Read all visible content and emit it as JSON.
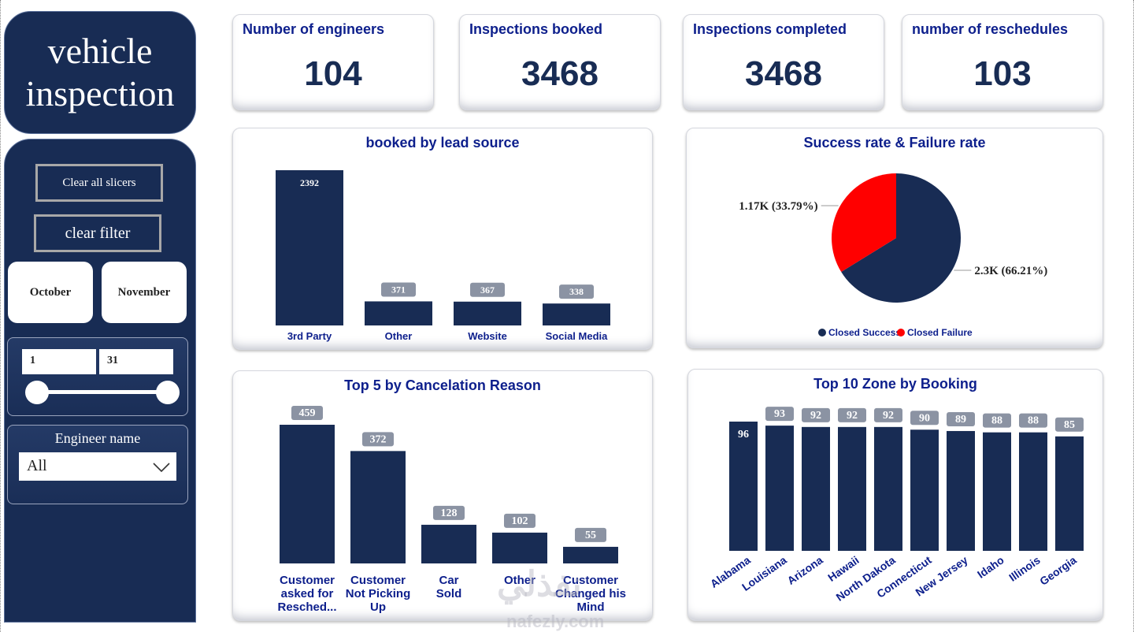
{
  "sidebar": {
    "title_line1": "vehicle",
    "title_line2": "inspection",
    "clear_slicers": "Clear all slicers",
    "clear_filter": "clear filter",
    "months": [
      "October",
      "November"
    ],
    "day_range": {
      "from": "1",
      "to": "31"
    },
    "engineer_label": "Engineer name",
    "engineer_value": "All"
  },
  "kpis": [
    {
      "label": "Number of engineers",
      "value": "104"
    },
    {
      "label": "Inspections booked",
      "value": "3468"
    },
    {
      "label": "Inspections completed",
      "value": "3468"
    },
    {
      "label": "number of reschedules",
      "value": "103"
    }
  ],
  "chart_data": [
    {
      "type": "bar",
      "title": "booked by lead source",
      "categories": [
        "3rd Party",
        "Other",
        "Website",
        "Social Media"
      ],
      "values": [
        2392,
        371,
        367,
        338
      ],
      "ylim": [
        0,
        2392
      ],
      "color": "#182c54"
    },
    {
      "type": "pie",
      "title": "Success rate & Failure rate",
      "labels": [
        "Closed Success",
        "Closed Failure"
      ],
      "values": [
        66.21,
        33.79
      ],
      "data_labels": [
        "2.3K (66.21%)",
        "1.17K (33.79%)"
      ],
      "colors": [
        "#182c54",
        "#ff0000"
      ],
      "legend": "bottom"
    },
    {
      "type": "bar",
      "title": "Top 5 by Cancelation Reason",
      "categories": [
        "Customer asked for Resched...",
        "Customer Not Picking Up",
        "Car Sold",
        "Other",
        "Customer Changed his Mind"
      ],
      "values": [
        459,
        372,
        128,
        102,
        55
      ],
      "ylim": [
        0,
        459
      ],
      "color": "#182c54"
    },
    {
      "type": "bar",
      "title": "Top 10 Zone by Booking",
      "categories": [
        "Alabama",
        "Louisiana",
        "Arizona",
        "Hawaii",
        "North Dakota",
        "Connecticut",
        "New Jersey",
        "Idaho",
        "Illinois",
        "Georgia"
      ],
      "values": [
        96,
        93,
        92,
        92,
        92,
        90,
        89,
        88,
        88,
        85
      ],
      "ylim": [
        0,
        96
      ],
      "color": "#182c54"
    }
  ],
  "watermark": "نفذلي",
  "watermark_sub": "nafezly.com"
}
